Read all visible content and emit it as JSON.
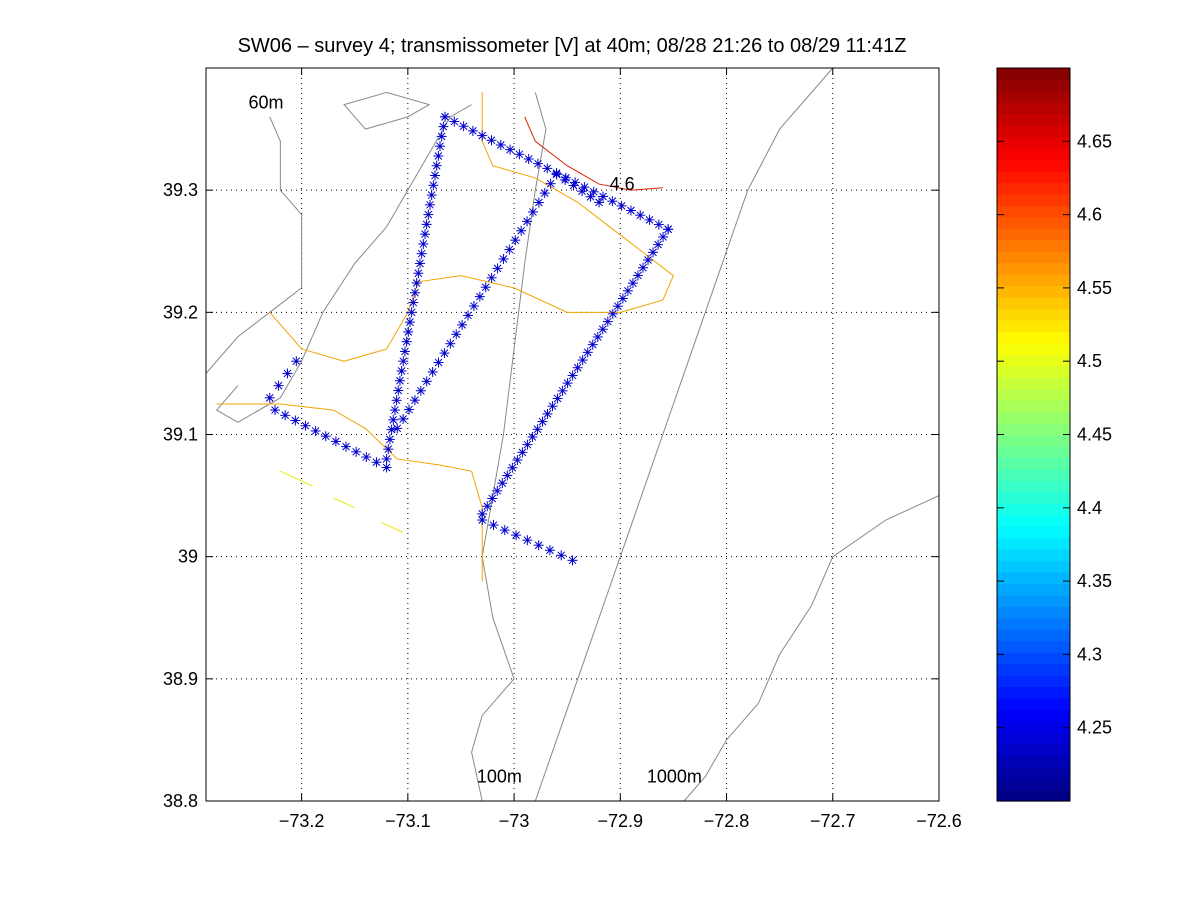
{
  "title": "SW06 – survey 4; transmissometer [V] at 40m; 08/28 21:26 to 08/29 11:41Z",
  "chart_data": {
    "type": "scatter",
    "xlim": [
      -73.29,
      -72.6
    ],
    "ylim": [
      38.8,
      39.4
    ],
    "xticks": [
      -73.2,
      -73.1,
      -73.0,
      -72.9,
      -72.8,
      -72.7,
      -72.6
    ],
    "xtick_labels": [
      "−73.2",
      "−73.1",
      "−73",
      "−72.9",
      "−72.8",
      "−72.7",
      "−72.6"
    ],
    "yticks": [
      38.8,
      38.9,
      39.0,
      39.1,
      39.2,
      39.3
    ],
    "ytick_labels": [
      "38.8",
      "38.9",
      "39",
      "39.1",
      "39.2",
      "39.3"
    ],
    "grid": true,
    "marker_color": "#0000cc",
    "isobath_color": "#888888",
    "isobath_labels": [
      {
        "text": "60m",
        "x": -73.25,
        "y": 39.367
      },
      {
        "text": "100m",
        "x": -73.035,
        "y": 38.815
      },
      {
        "text": "1000m",
        "x": -72.875,
        "y": 38.815
      }
    ],
    "contour_labels": [
      {
        "text": "4.6",
        "x": -72.91,
        "y": 39.3
      }
    ],
    "isobaths": [
      [
        [
          -73.23,
          39.36
        ],
        [
          -73.22,
          39.34
        ],
        [
          -73.22,
          39.3
        ],
        [
          -73.2,
          39.28
        ],
        [
          -73.2,
          39.22
        ],
        [
          -73.23,
          39.2
        ],
        [
          -73.26,
          39.18
        ],
        [
          -73.29,
          39.15
        ]
      ],
      [
        [
          -73.26,
          39.14
        ],
        [
          -73.28,
          39.12
        ],
        [
          -73.26,
          39.11
        ],
        [
          -73.22,
          39.13
        ],
        [
          -73.2,
          39.16
        ],
        [
          -73.18,
          39.2
        ],
        [
          -73.15,
          39.24
        ],
        [
          -73.12,
          39.27
        ],
        [
          -73.1,
          39.3
        ],
        [
          -73.08,
          39.33
        ],
        [
          -73.06,
          39.36
        ],
        [
          -73.04,
          39.37
        ]
      ],
      [
        [
          -73.14,
          39.35
        ],
        [
          -73.1,
          39.36
        ],
        [
          -73.08,
          39.37
        ],
        [
          -73.12,
          39.38
        ],
        [
          -73.16,
          39.37
        ],
        [
          -73.14,
          39.35
        ]
      ],
      [
        [
          -72.98,
          39.38
        ],
        [
          -72.97,
          39.35
        ],
        [
          -72.98,
          39.3
        ],
        [
          -72.99,
          39.24
        ],
        [
          -73.0,
          39.17
        ],
        [
          -73.01,
          39.1
        ],
        [
          -73.02,
          39.05
        ],
        [
          -73.03,
          39.0
        ],
        [
          -73.02,
          38.95
        ],
        [
          -73.0,
          38.9
        ],
        [
          -73.03,
          38.87
        ],
        [
          -73.04,
          38.84
        ],
        [
          -73.03,
          38.8
        ]
      ],
      [
        [
          -72.7,
          39.4
        ],
        [
          -72.75,
          39.35
        ],
        [
          -72.78,
          39.3
        ],
        [
          -72.8,
          39.25
        ],
        [
          -72.82,
          39.2
        ],
        [
          -72.84,
          39.15
        ],
        [
          -72.86,
          39.1
        ],
        [
          -72.88,
          39.05
        ],
        [
          -72.9,
          39.0
        ],
        [
          -72.92,
          38.95
        ],
        [
          -72.94,
          38.9
        ],
        [
          -72.96,
          38.85
        ],
        [
          -72.98,
          38.8
        ]
      ],
      [
        [
          -72.6,
          39.05
        ],
        [
          -72.65,
          39.03
        ],
        [
          -72.7,
          39.0
        ],
        [
          -72.72,
          38.96
        ],
        [
          -72.75,
          38.92
        ],
        [
          -72.77,
          38.88
        ],
        [
          -72.8,
          38.85
        ],
        [
          -72.82,
          38.82
        ],
        [
          -72.84,
          38.8
        ]
      ]
    ],
    "contours": [
      {
        "value": 4.6,
        "color": "#dd2200",
        "points": [
          [
            -72.99,
            39.36
          ],
          [
            -72.98,
            39.34
          ],
          [
            -72.95,
            39.32
          ],
          [
            -72.92,
            39.305
          ],
          [
            -72.89,
            39.3
          ],
          [
            -72.86,
            39.302
          ]
        ]
      },
      {
        "value": 4.55,
        "color": "#f0a500",
        "points": [
          [
            -73.03,
            39.38
          ],
          [
            -73.03,
            39.34
          ],
          [
            -73.02,
            39.32
          ],
          [
            -72.98,
            39.31
          ],
          [
            -72.94,
            39.29
          ],
          [
            -72.91,
            39.27
          ],
          [
            -72.88,
            39.25
          ],
          [
            -72.85,
            39.23
          ],
          [
            -72.86,
            39.21
          ],
          [
            -72.9,
            39.2
          ],
          [
            -72.95,
            39.2
          ],
          [
            -73.0,
            39.22
          ],
          [
            -73.05,
            39.23
          ],
          [
            -73.09,
            39.225
          ],
          [
            -73.1,
            39.2
          ],
          [
            -73.12,
            39.17
          ],
          [
            -73.16,
            39.16
          ],
          [
            -73.2,
            39.17
          ],
          [
            -73.23,
            39.2
          ]
        ]
      },
      {
        "value": 4.55,
        "color": "#f0a500",
        "points": [
          [
            -73.28,
            39.125
          ],
          [
            -73.22,
            39.125
          ],
          [
            -73.17,
            39.12
          ],
          [
            -73.14,
            39.105
          ],
          [
            -73.11,
            39.08
          ],
          [
            -73.07,
            39.075
          ],
          [
            -73.04,
            39.07
          ],
          [
            -73.03,
            39.04
          ],
          [
            -73.03,
            39.0
          ],
          [
            -73.03,
            38.98
          ]
        ]
      },
      {
        "value": 4.5,
        "color": "#e8e800",
        "points": [
          [
            -73.22,
            39.07
          ],
          [
            -73.19,
            39.058
          ]
        ]
      },
      {
        "value": 4.5,
        "color": "#e8e800",
        "points": [
          [
            -73.17,
            39.048
          ],
          [
            -73.15,
            39.04
          ]
        ]
      },
      {
        "value": 4.5,
        "color": "#e8e800",
        "points": [
          [
            -73.125,
            39.028
          ],
          [
            -73.105,
            39.02
          ]
        ]
      }
    ],
    "tracks": [
      {
        "name": "segment-1",
        "points": [
          [
            -73.225,
            39.12
          ],
          [
            -73.12,
            39.073
          ]
        ],
        "count": 12
      },
      {
        "name": "segment-2",
        "points": [
          [
            -73.12,
            39.08
          ],
          [
            -73.065,
            39.36
          ]
        ],
        "count": 36
      },
      {
        "name": "segment-3",
        "points": [
          [
            -73.065,
            39.36
          ],
          [
            -72.855,
            39.268
          ]
        ],
        "count": 25
      },
      {
        "name": "segment-4",
        "points": [
          [
            -72.855,
            39.268
          ],
          [
            -73.03,
            39.035
          ]
        ],
        "count": 38
      },
      {
        "name": "segment-5",
        "points": [
          [
            -73.03,
            39.03
          ],
          [
            -72.945,
            38.997
          ]
        ],
        "count": 9
      },
      {
        "name": "segment-6",
        "points": [
          [
            -73.11,
            39.105
          ],
          [
            -72.96,
            39.313
          ]
        ],
        "count": 28
      },
      {
        "name": "segment-7",
        "points": [
          [
            -72.96,
            39.313
          ],
          [
            -72.92,
            39.29
          ]
        ],
        "count": 6
      },
      {
        "name": "segment-8",
        "points": [
          [
            -73.205,
            39.16
          ],
          [
            -73.23,
            39.13
          ]
        ],
        "count": 4
      }
    ],
    "colorbar": {
      "min": 4.2,
      "max": 4.7,
      "ticks": [
        4.25,
        4.3,
        4.35,
        4.4,
        4.45,
        4.5,
        4.55,
        4.6,
        4.65
      ],
      "tick_labels": [
        "4.25",
        "4.3",
        "4.35",
        "4.4",
        "4.45",
        "4.5",
        "4.55",
        "4.6",
        "4.65"
      ],
      "colormap": "jet"
    }
  }
}
